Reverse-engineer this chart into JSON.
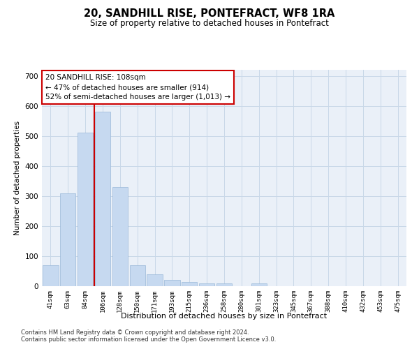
{
  "title": "20, SANDHILL RISE, PONTEFRACT, WF8 1RA",
  "subtitle": "Size of property relative to detached houses in Pontefract",
  "xlabel": "Distribution of detached houses by size in Pontefract",
  "ylabel": "Number of detached properties",
  "bar_color": "#c6d9f0",
  "bar_edge_color": "#9ab8d8",
  "grid_color": "#c8d8e8",
  "background_color": "#eaf0f8",
  "property_line_color": "#cc0000",
  "annotation_text": "20 SANDHILL RISE: 108sqm\n← 47% of detached houses are smaller (914)\n52% of semi-detached houses are larger (1,013) →",
  "annotation_box_color": "#ffffff",
  "annotation_box_edge_color": "#cc0000",
  "categories": [
    "41sqm",
    "63sqm",
    "84sqm",
    "106sqm",
    "128sqm",
    "150sqm",
    "171sqm",
    "193sqm",
    "215sqm",
    "236sqm",
    "258sqm",
    "280sqm",
    "301sqm",
    "323sqm",
    "345sqm",
    "367sqm",
    "388sqm",
    "410sqm",
    "432sqm",
    "453sqm",
    "475sqm"
  ],
  "values": [
    70,
    310,
    510,
    580,
    330,
    70,
    40,
    22,
    14,
    9,
    10,
    0,
    10,
    0,
    0,
    0,
    0,
    0,
    0,
    0,
    0
  ],
  "ylim": [
    0,
    720
  ],
  "yticks": [
    0,
    100,
    200,
    300,
    400,
    500,
    600,
    700
  ],
  "footnote1": "Contains HM Land Registry data © Crown copyright and database right 2024.",
  "footnote2": "Contains public sector information licensed under the Open Government Licence v3.0."
}
